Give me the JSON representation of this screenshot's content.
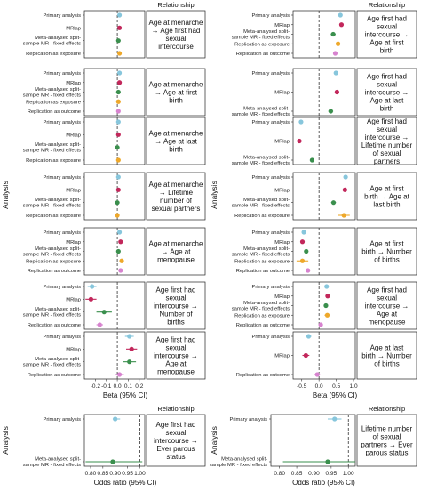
{
  "colors": {
    "primary": "#87c6dc",
    "mrlap": "#c2275b",
    "meta": "#3a8f4d",
    "replication_exposure": "#eea82a",
    "replication_outcome": "#d783cf"
  },
  "labels": {
    "relationship_header": "Relationship",
    "analysis_axis": "Analysis",
    "beta_axis": "Beta (95% CI)",
    "or_axis": "Odds ratio (95% CI)"
  },
  "chart_data": [
    {
      "type": "scatter",
      "subtype": "forest",
      "panel": "left-beta",
      "xlabel": "Beta (95% CI)",
      "ylabel": "Analysis",
      "xlim": [
        -0.3,
        0.25
      ],
      "xticks": [
        "-0.2",
        "-0.1",
        "0.0",
        "0.1",
        "0.2"
      ],
      "xtick_values": [
        -0.2,
        -0.1,
        0.0,
        0.1,
        0.2
      ],
      "reference_line": 0,
      "facets": [
        {
          "relationship": "Age at menarche → Age first had sexual intercourse",
          "rows": [
            {
              "analysis": "Primary analysis",
              "method": "primary",
              "est": 0.02,
              "lo": 0.01,
              "hi": 0.03
            },
            {
              "analysis": "MRlap",
              "method": "mrlap",
              "est": 0.02,
              "lo": 0.01,
              "hi": 0.03
            },
            {
              "analysis": "Meta-analysed split-sample MR - fixed effects",
              "method": "meta",
              "est": 0.01,
              "lo": 0.0,
              "hi": 0.02
            },
            {
              "analysis": "Replication as exposure",
              "method": "replication_exposure",
              "est": 0.02,
              "lo": 0.01,
              "hi": 0.03
            }
          ]
        },
        {
          "relationship": "Age at menarche → Age at first birth",
          "rows": [
            {
              "analysis": "Primary analysis",
              "method": "primary",
              "est": 0.02,
              "lo": 0.01,
              "hi": 0.03
            },
            {
              "analysis": "MRlap",
              "method": "mrlap",
              "est": 0.02,
              "lo": 0.01,
              "hi": 0.03
            },
            {
              "analysis": "Meta-analysed split-sample MR - fixed effects",
              "method": "meta",
              "est": 0.01,
              "lo": 0.0,
              "hi": 0.02
            },
            {
              "analysis": "Replication as exposure",
              "method": "replication_exposure",
              "est": 0.01,
              "lo": 0.0,
              "hi": 0.02
            },
            {
              "analysis": "Replication as outcome",
              "method": "replication_outcome",
              "est": 0.01,
              "lo": 0.0,
              "hi": 0.02
            }
          ]
        },
        {
          "relationship": "Age at menarche → Age at last birth",
          "rows": [
            {
              "analysis": "Primary analysis",
              "method": "primary",
              "est": 0.01,
              "lo": 0.0,
              "hi": 0.02
            },
            {
              "analysis": "MRlap",
              "method": "mrlap",
              "est": 0.01,
              "lo": 0.0,
              "hi": 0.02
            },
            {
              "analysis": "Meta-analysed split-sample MR - fixed effects",
              "method": "meta",
              "est": 0.0,
              "lo": -0.01,
              "hi": 0.01
            },
            {
              "analysis": "Replication as exposure",
              "method": "replication_exposure",
              "est": 0.01,
              "lo": 0.0,
              "hi": 0.02
            }
          ]
        },
        {
          "relationship": "Age at menarche → Lifetime number of sexual partners",
          "rows": [
            {
              "analysis": "Primary analysis",
              "method": "primary",
              "est": 0.01,
              "lo": 0.0,
              "hi": 0.02
            },
            {
              "analysis": "MRlap",
              "method": "mrlap",
              "est": 0.01,
              "lo": 0.0,
              "hi": 0.02
            },
            {
              "analysis": "Meta-analysed split-sample MR - fixed effects",
              "method": "meta",
              "est": 0.0,
              "lo": -0.01,
              "hi": 0.01
            },
            {
              "analysis": "Replication as exposure",
              "method": "replication_exposure",
              "est": 0.0,
              "lo": -0.01,
              "hi": 0.01
            }
          ]
        },
        {
          "relationship": "Age at menarche → Age at menopause",
          "rows": [
            {
              "analysis": "Primary analysis",
              "method": "primary",
              "est": 0.02,
              "lo": 0.01,
              "hi": 0.03
            },
            {
              "analysis": "MRlap",
              "method": "mrlap",
              "est": 0.03,
              "lo": 0.02,
              "hi": 0.04
            },
            {
              "analysis": "Meta-analysed split-sample MR - fixed effects",
              "method": "meta",
              "est": 0.01,
              "lo": 0.0,
              "hi": 0.02
            },
            {
              "analysis": "Replication as exposure",
              "method": "replication_exposure",
              "est": 0.04,
              "lo": 0.03,
              "hi": 0.05
            },
            {
              "analysis": "Replication as outcome",
              "method": "replication_outcome",
              "est": 0.03,
              "lo": 0.02,
              "hi": 0.04
            }
          ]
        },
        {
          "relationship": "Age first had sexual intercourse → Number of births",
          "rows": [
            {
              "analysis": "Primary analysis",
              "method": "primary",
              "est": -0.23,
              "lo": -0.27,
              "hi": -0.19
            },
            {
              "analysis": "MRlap",
              "method": "mrlap",
              "est": -0.24,
              "lo": -0.29,
              "hi": -0.19
            },
            {
              "analysis": "Meta-analysed split-sample MR - fixed effects",
              "method": "meta",
              "est": -0.12,
              "lo": -0.19,
              "hi": -0.05
            },
            {
              "analysis": "Replication as outcome",
              "method": "replication_outcome",
              "est": -0.16,
              "lo": -0.19,
              "hi": -0.13
            }
          ]
        },
        {
          "relationship": "Age first had sexual intercourse → Age at menopause",
          "rows": [
            {
              "analysis": "Primary analysis",
              "method": "primary",
              "est": 0.11,
              "lo": 0.07,
              "hi": 0.15
            },
            {
              "analysis": "MRlap",
              "method": "mrlap",
              "est": 0.13,
              "lo": 0.08,
              "hi": 0.18
            },
            {
              "analysis": "Meta-analysed split-sample MR - fixed effects",
              "method": "meta",
              "est": 0.11,
              "lo": 0.05,
              "hi": 0.17
            },
            {
              "analysis": "Replication as outcome",
              "method": "replication_outcome",
              "est": 0.02,
              "lo": -0.02,
              "hi": 0.06
            }
          ]
        }
      ]
    },
    {
      "type": "scatter",
      "subtype": "forest",
      "panel": "right-beta",
      "xlabel": "Beta (95% CI)",
      "ylabel": "Analysis",
      "xlim": [
        -0.75,
        1.05
      ],
      "xticks": [
        "-0.5",
        "0.0",
        "0.5",
        "1.0"
      ],
      "xtick_values": [
        -0.5,
        0.0,
        0.5,
        1.0
      ],
      "reference_line": 0,
      "facets": [
        {
          "relationship": "Age first had sexual intercourse → Age at first birth",
          "rows": [
            {
              "analysis": "Primary analysis",
              "method": "primary",
              "est": 0.62,
              "lo": 0.59,
              "hi": 0.65
            },
            {
              "analysis": "MRlap",
              "method": "mrlap",
              "est": 0.65,
              "lo": 0.61,
              "hi": 0.69
            },
            {
              "analysis": "Meta-analysed split-sample MR - fixed effects",
              "method": "meta",
              "est": 0.41,
              "lo": 0.34,
              "hi": 0.48
            },
            {
              "analysis": "Replication as exposure",
              "method": "replication_exposure",
              "est": 0.55,
              "lo": 0.5,
              "hi": 0.6
            },
            {
              "analysis": "Replication as outcome",
              "method": "replication_outcome",
              "est": 0.47,
              "lo": 0.43,
              "hi": 0.51
            }
          ]
        },
        {
          "relationship": "Age first had sexual intercourse → Age at last birth",
          "rows": [
            {
              "analysis": "Primary analysis",
              "method": "primary",
              "est": 0.49,
              "lo": 0.45,
              "hi": 0.53
            },
            {
              "analysis": "MRlap",
              "method": "mrlap",
              "est": 0.52,
              "lo": 0.48,
              "hi": 0.56
            },
            {
              "analysis": "Meta-analysed split-sample MR - fixed effects",
              "method": "meta",
              "est": 0.34,
              "lo": 0.27,
              "hi": 0.41
            }
          ]
        },
        {
          "relationship": "Age first had sexual intercourse → Lifetime number of sexual partners",
          "rows": [
            {
              "analysis": "Primary analysis",
              "method": "primary",
              "est": -0.52,
              "lo": -0.56,
              "hi": -0.48
            },
            {
              "analysis": "MRlap",
              "method": "mrlap",
              "est": -0.57,
              "lo": -0.61,
              "hi": -0.53
            },
            {
              "analysis": "Meta-analysed split-sample MR - fixed effects",
              "method": "meta",
              "est": -0.2,
              "lo": -0.26,
              "hi": -0.14
            }
          ]
        },
        {
          "relationship": "Age at first birth → Age at last birth",
          "rows": [
            {
              "analysis": "Primary analysis",
              "method": "primary",
              "est": 0.77,
              "lo": 0.74,
              "hi": 0.8
            },
            {
              "analysis": "MRlap",
              "method": "mrlap",
              "est": 0.75,
              "lo": 0.72,
              "hi": 0.78
            },
            {
              "analysis": "Meta-analysed split-sample MR - fixed effects",
              "method": "meta",
              "est": 0.42,
              "lo": 0.35,
              "hi": 0.49
            },
            {
              "analysis": "Replication as exposure",
              "method": "replication_exposure",
              "est": 0.72,
              "lo": 0.55,
              "hi": 0.89
            }
          ]
        },
        {
          "relationship": "Age at first birth → Number of births",
          "rows": [
            {
              "analysis": "Primary analysis",
              "method": "primary",
              "est": -0.44,
              "lo": -0.48,
              "hi": -0.4
            },
            {
              "analysis": "MRlap",
              "method": "mrlap",
              "est": -0.48,
              "lo": -0.52,
              "hi": -0.44
            },
            {
              "analysis": "Meta-analysed split-sample MR - fixed effects",
              "method": "meta",
              "est": -0.37,
              "lo": -0.43,
              "hi": -0.31
            },
            {
              "analysis": "Replication as exposure",
              "method": "replication_exposure",
              "est": -0.48,
              "lo": -0.65,
              "hi": -0.31
            },
            {
              "analysis": "Replication as outcome",
              "method": "replication_outcome",
              "est": -0.32,
              "lo": -0.36,
              "hi": -0.28
            }
          ]
        },
        {
          "relationship": "Age first had sexual intercourse → Age at menopause",
          "rows": [
            {
              "analysis": "Primary analysis",
              "method": "primary",
              "est": 0.22,
              "lo": 0.18,
              "hi": 0.26
            },
            {
              "analysis": "MRlap",
              "method": "mrlap",
              "est": 0.25,
              "lo": 0.21,
              "hi": 0.29
            },
            {
              "analysis": "Meta-analysed split-sample MR - fixed effects",
              "method": "meta",
              "est": 0.2,
              "lo": 0.14,
              "hi": 0.26
            },
            {
              "analysis": "Replication as exposure",
              "method": "replication_exposure",
              "est": 0.24,
              "lo": 0.16,
              "hi": 0.32
            },
            {
              "analysis": "Replication as outcome",
              "method": "replication_outcome",
              "est": 0.05,
              "lo": 0.01,
              "hi": 0.09
            }
          ]
        },
        {
          "relationship": "Age at last birth → Number of births",
          "rows": [
            {
              "analysis": "Primary analysis",
              "method": "primary",
              "est": -0.3,
              "lo": -0.38,
              "hi": -0.22
            },
            {
              "analysis": "MRlap",
              "method": "mrlap",
              "est": -0.38,
              "lo": -0.48,
              "hi": -0.28
            },
            {
              "analysis": "Replication as outcome",
              "method": "replication_outcome",
              "est": -0.05,
              "lo": -0.13,
              "hi": 0.03
            }
          ]
        }
      ]
    },
    {
      "type": "scatter",
      "subtype": "forest",
      "panel": "left-or",
      "xlabel": "Odds ratio (95% CI)",
      "ylabel": "Analysis",
      "xlim": [
        0.775,
        1.02
      ],
      "xticks": [
        "0.80",
        "0.85",
        "0.90",
        "0.95",
        "1.00"
      ],
      "xtick_values": [
        0.8,
        0.85,
        0.9,
        0.95,
        1.0
      ],
      "reference_line": 1,
      "facets": [
        {
          "relationship": "Age first had sexual intercourse → Ever parous status",
          "rows": [
            {
              "analysis": "Primary analysis",
              "method": "primary",
              "est": 0.9,
              "lo": 0.89,
              "hi": 0.92
            },
            {
              "analysis": "Meta-analysed split-sample MR - fixed effects",
              "method": "meta",
              "est": 0.89,
              "lo": 0.78,
              "hi": 1.01
            }
          ]
        }
      ]
    },
    {
      "type": "scatter",
      "subtype": "forest",
      "panel": "right-or",
      "xlabel": "Odds ratio (95% CI)",
      "ylabel": "Analysis",
      "xlim": [
        0.775,
        1.02
      ],
      "xticks": [
        "0.80",
        "0.85",
        "0.90",
        "0.95",
        "1.00"
      ],
      "xtick_values": [
        0.8,
        0.85,
        0.9,
        0.95,
        1.0
      ],
      "reference_line": 1,
      "facets": [
        {
          "relationship": "Lifetime number of sexual partners → Ever parous status",
          "rows": [
            {
              "analysis": "Primary analysis",
              "method": "primary",
              "est": 0.96,
              "lo": 0.94,
              "hi": 0.98
            },
            {
              "analysis": "Meta-analysed split-sample MR - fixed effects",
              "method": "meta",
              "est": 0.94,
              "lo": 0.81,
              "hi": 1.02
            }
          ]
        }
      ]
    }
  ]
}
